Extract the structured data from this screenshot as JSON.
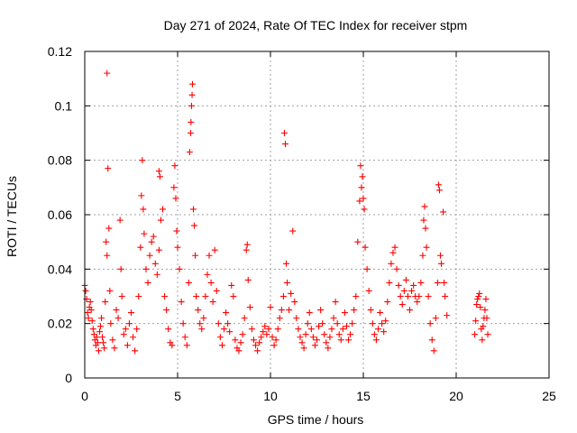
{
  "chart_data": {
    "type": "scatter",
    "title": "Day 271 of 2024, Rate Of TEC Index for receiver stpm",
    "xlabel": "GPS time / hours",
    "ylabel": "ROTI / TECUs",
    "xlim": [
      0,
      25
    ],
    "ylim": [
      0,
      0.12
    ],
    "xticks": [
      0,
      5,
      10,
      15,
      20,
      25
    ],
    "yticks": [
      0,
      0.02,
      0.04,
      0.06,
      0.08,
      0.1,
      0.12
    ],
    "xtick_labels": [
      "0",
      "5",
      "10",
      "15",
      "20",
      "25"
    ],
    "ytick_labels": [
      "0",
      "0.02",
      "0.04",
      "0.06",
      "0.08",
      "0.1",
      "0.12"
    ],
    "grid": true,
    "legend": "none",
    "marker": "+",
    "color": "#ff0000",
    "series": [
      {
        "points": [
          [
            0.0,
            0.034
          ],
          [
            0.05,
            0.032
          ],
          [
            0.1,
            0.029
          ],
          [
            0.15,
            0.024
          ],
          [
            0.2,
            0.022
          ],
          [
            0.25,
            0.026
          ],
          [
            0.3,
            0.028
          ],
          [
            0.35,
            0.025
          ],
          [
            0.4,
            0.021
          ],
          [
            0.45,
            0.018
          ],
          [
            0.5,
            0.016
          ],
          [
            0.55,
            0.014
          ],
          [
            0.6,
            0.012
          ],
          [
            0.65,
            0.015
          ],
          [
            0.7,
            0.013
          ],
          [
            0.75,
            0.01
          ],
          [
            0.8,
            0.017
          ],
          [
            0.85,
            0.019
          ],
          [
            0.9,
            0.022
          ],
          [
            0.95,
            0.015
          ],
          [
            1.0,
            0.013
          ],
          [
            1.05,
            0.011
          ],
          [
            1.1,
            0.028
          ],
          [
            1.15,
            0.05
          ],
          [
            1.2,
            0.045
          ],
          [
            1.2,
            0.112
          ],
          [
            1.25,
            0.077
          ],
          [
            1.3,
            0.055
          ],
          [
            1.35,
            0.032
          ],
          [
            1.4,
            0.02
          ],
          [
            1.5,
            0.014
          ],
          [
            1.6,
            0.011
          ],
          [
            1.7,
            0.025
          ],
          [
            1.8,
            0.022
          ],
          [
            1.9,
            0.058
          ],
          [
            1.95,
            0.04
          ],
          [
            2.0,
            0.03
          ],
          [
            2.1,
            0.016
          ],
          [
            2.2,
            0.018
          ],
          [
            2.3,
            0.012
          ],
          [
            2.4,
            0.02
          ],
          [
            2.5,
            0.024
          ],
          [
            2.6,
            0.015
          ],
          [
            2.7,
            0.01
          ],
          [
            2.8,
            0.018
          ],
          [
            2.9,
            0.03
          ],
          [
            3.0,
            0.048
          ],
          [
            3.05,
            0.067
          ],
          [
            3.1,
            0.08
          ],
          [
            3.15,
            0.062
          ],
          [
            3.2,
            0.053
          ],
          [
            3.3,
            0.04
          ],
          [
            3.4,
            0.035
          ],
          [
            3.5,
            0.045
          ],
          [
            3.6,
            0.05
          ],
          [
            3.7,
            0.052
          ],
          [
            3.8,
            0.042
          ],
          [
            3.9,
            0.038
          ],
          [
            4.0,
            0.047
          ],
          [
            4.0,
            0.076
          ],
          [
            4.05,
            0.074
          ],
          [
            4.1,
            0.058
          ],
          [
            4.2,
            0.062
          ],
          [
            4.3,
            0.03
          ],
          [
            4.4,
            0.025
          ],
          [
            4.5,
            0.018
          ],
          [
            4.6,
            0.013
          ],
          [
            4.7,
            0.012
          ],
          [
            4.8,
            0.07
          ],
          [
            4.85,
            0.078
          ],
          [
            4.9,
            0.066
          ],
          [
            4.95,
            0.054
          ],
          [
            5.0,
            0.048
          ],
          [
            5.1,
            0.04
          ],
          [
            5.2,
            0.028
          ],
          [
            5.3,
            0.02
          ],
          [
            5.4,
            0.015
          ],
          [
            5.5,
            0.012
          ],
          [
            5.6,
            0.035
          ],
          [
            5.65,
            0.083
          ],
          [
            5.7,
            0.09
          ],
          [
            5.72,
            0.094
          ],
          [
            5.75,
            0.1
          ],
          [
            5.78,
            0.104
          ],
          [
            5.8,
            0.108
          ],
          [
            5.85,
            0.062
          ],
          [
            5.9,
            0.056
          ],
          [
            5.95,
            0.045
          ],
          [
            6.0,
            0.03
          ],
          [
            6.1,
            0.025
          ],
          [
            6.2,
            0.02
          ],
          [
            6.3,
            0.018
          ],
          [
            6.4,
            0.022
          ],
          [
            6.5,
            0.03
          ],
          [
            6.6,
            0.038
          ],
          [
            6.7,
            0.045
          ],
          [
            6.8,
            0.035
          ],
          [
            6.9,
            0.028
          ],
          [
            7.0,
            0.047
          ],
          [
            7.1,
            0.032
          ],
          [
            7.2,
            0.02
          ],
          [
            7.3,
            0.015
          ],
          [
            7.4,
            0.012
          ],
          [
            7.5,
            0.018
          ],
          [
            7.6,
            0.024
          ],
          [
            7.7,
            0.02
          ],
          [
            7.8,
            0.017
          ],
          [
            7.9,
            0.034
          ],
          [
            8.0,
            0.03
          ],
          [
            8.1,
            0.014
          ],
          [
            8.2,
            0.011
          ],
          [
            8.3,
            0.01
          ],
          [
            8.4,
            0.013
          ],
          [
            8.5,
            0.016
          ],
          [
            8.6,
            0.022
          ],
          [
            8.7,
            0.047
          ],
          [
            8.75,
            0.049
          ],
          [
            8.8,
            0.036
          ],
          [
            8.9,
            0.026
          ],
          [
            9.0,
            0.018
          ],
          [
            9.1,
            0.014
          ],
          [
            9.2,
            0.012
          ],
          [
            9.3,
            0.01
          ],
          [
            9.4,
            0.013
          ],
          [
            9.5,
            0.015
          ],
          [
            9.6,
            0.017
          ],
          [
            9.7,
            0.019
          ],
          [
            9.8,
            0.016
          ],
          [
            9.9,
            0.018
          ],
          [
            10.0,
            0.026
          ],
          [
            10.1,
            0.015
          ],
          [
            10.2,
            0.012
          ],
          [
            10.3,
            0.014
          ],
          [
            10.4,
            0.018
          ],
          [
            10.5,
            0.022
          ],
          [
            10.6,
            0.025
          ],
          [
            10.7,
            0.03
          ],
          [
            10.75,
            0.09
          ],
          [
            10.8,
            0.086
          ],
          [
            10.85,
            0.042
          ],
          [
            10.9,
            0.035
          ],
          [
            11.0,
            0.025
          ],
          [
            11.1,
            0.031
          ],
          [
            11.2,
            0.054
          ],
          [
            11.3,
            0.028
          ],
          [
            11.4,
            0.022
          ],
          [
            11.5,
            0.018
          ],
          [
            11.6,
            0.015
          ],
          [
            11.7,
            0.013
          ],
          [
            11.8,
            0.011
          ],
          [
            11.9,
            0.016
          ],
          [
            12.0,
            0.02
          ],
          [
            12.1,
            0.024
          ],
          [
            12.2,
            0.018
          ],
          [
            12.3,
            0.015
          ],
          [
            12.4,
            0.012
          ],
          [
            12.5,
            0.014
          ],
          [
            12.6,
            0.019
          ],
          [
            12.7,
            0.025
          ],
          [
            12.8,
            0.02
          ],
          [
            12.9,
            0.016
          ],
          [
            13.0,
            0.013
          ],
          [
            13.1,
            0.011
          ],
          [
            13.2,
            0.015
          ],
          [
            13.3,
            0.018
          ],
          [
            13.4,
            0.022
          ],
          [
            13.5,
            0.028
          ],
          [
            13.6,
            0.02
          ],
          [
            13.7,
            0.016
          ],
          [
            13.8,
            0.014
          ],
          [
            13.9,
            0.018
          ],
          [
            14.0,
            0.024
          ],
          [
            14.1,
            0.019
          ],
          [
            14.2,
            0.014
          ],
          [
            14.3,
            0.016
          ],
          [
            14.4,
            0.02
          ],
          [
            14.5,
            0.025
          ],
          [
            14.6,
            0.03
          ],
          [
            14.7,
            0.05
          ],
          [
            14.8,
            0.065
          ],
          [
            14.85,
            0.078
          ],
          [
            14.9,
            0.07
          ],
          [
            14.95,
            0.074
          ],
          [
            15.0,
            0.066
          ],
          [
            15.05,
            0.062
          ],
          [
            15.1,
            0.048
          ],
          [
            15.2,
            0.04
          ],
          [
            15.3,
            0.032
          ],
          [
            15.4,
            0.025
          ],
          [
            15.5,
            0.02
          ],
          [
            15.6,
            0.016
          ],
          [
            15.7,
            0.014
          ],
          [
            15.8,
            0.018
          ],
          [
            15.9,
            0.024
          ],
          [
            16.0,
            0.02
          ],
          [
            16.1,
            0.017
          ],
          [
            16.2,
            0.021
          ],
          [
            16.3,
            0.028
          ],
          [
            16.4,
            0.035
          ],
          [
            16.5,
            0.042
          ],
          [
            16.6,
            0.046
          ],
          [
            16.7,
            0.048
          ],
          [
            16.8,
            0.04
          ],
          [
            16.9,
            0.034
          ],
          [
            17.0,
            0.03
          ],
          [
            17.1,
            0.027
          ],
          [
            17.2,
            0.032
          ],
          [
            17.3,
            0.036
          ],
          [
            17.4,
            0.03
          ],
          [
            17.5,
            0.025
          ],
          [
            17.6,
            0.032
          ],
          [
            17.7,
            0.034
          ],
          [
            17.8,
            0.03
          ],
          [
            17.9,
            0.028
          ],
          [
            18.0,
            0.03
          ],
          [
            18.1,
            0.035
          ],
          [
            18.2,
            0.045
          ],
          [
            18.25,
            0.058
          ],
          [
            18.3,
            0.063
          ],
          [
            18.35,
            0.055
          ],
          [
            18.4,
            0.048
          ],
          [
            18.5,
            0.03
          ],
          [
            18.6,
            0.02
          ],
          [
            18.7,
            0.014
          ],
          [
            18.8,
            0.01
          ],
          [
            18.9,
            0.022
          ],
          [
            19.0,
            0.035
          ],
          [
            19.05,
            0.071
          ],
          [
            19.1,
            0.069
          ],
          [
            19.15,
            0.045
          ],
          [
            19.2,
            0.042
          ],
          [
            19.3,
            0.061
          ],
          [
            19.35,
            0.035
          ],
          [
            19.4,
            0.03
          ],
          [
            19.5,
            0.023
          ],
          [
            21.0,
            0.016
          ],
          [
            21.05,
            0.021
          ],
          [
            21.1,
            0.027
          ],
          [
            21.15,
            0.029
          ],
          [
            21.2,
            0.03
          ],
          [
            21.25,
            0.031
          ],
          [
            21.3,
            0.026
          ],
          [
            21.35,
            0.018
          ],
          [
            21.4,
            0.014
          ],
          [
            21.45,
            0.019
          ],
          [
            21.5,
            0.022
          ],
          [
            21.55,
            0.025
          ],
          [
            21.6,
            0.029
          ],
          [
            21.65,
            0.022
          ],
          [
            21.7,
            0.016
          ]
        ]
      }
    ]
  }
}
